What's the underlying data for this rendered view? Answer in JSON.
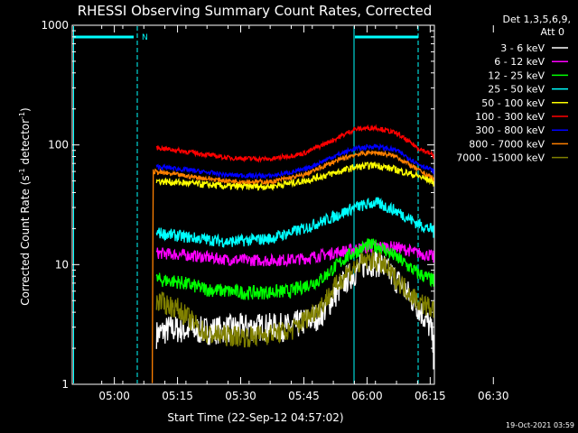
{
  "chart_data": {
    "type": "line",
    "title": "RHESSI Observing Summary Count Rates, Corrected",
    "xlabel": "Start Time (22-Sep-12 04:57:02)",
    "ylabel": "Corrected Count Rate (s⁻¹ detector⁻¹)",
    "y_scale": "log",
    "ylim": [
      1,
      1000
    ],
    "y_ticks": [
      "1",
      "10",
      "100",
      "1000"
    ],
    "x_range_min": [
      -7,
      79
    ],
    "x_ticks": [
      {
        "label": "05:00",
        "min": 3
      },
      {
        "label": "05:15",
        "min": 18
      },
      {
        "label": "05:30",
        "min": 33
      },
      {
        "label": "05:45",
        "min": 48
      },
      {
        "label": "06:00",
        "min": 63
      },
      {
        "label": "06:15",
        "min": 78
      },
      {
        "label": "06:30",
        "min": 93
      }
    ],
    "legend_header": [
      "Det 1,3,5,6,9,",
      "Att 0"
    ],
    "legend_position": "right",
    "timestamp": "19-Oct-2021 03:59",
    "night_marker": "N",
    "series": [
      {
        "name": "3 - 6 keV",
        "color": "#ffffff",
        "points": [
          [
            13,
            2.6
          ],
          [
            16,
            2.9
          ],
          [
            25,
            2.8
          ],
          [
            35,
            3.0
          ],
          [
            45,
            3.0
          ],
          [
            52,
            3.8
          ],
          [
            58,
            7.5
          ],
          [
            63,
            10.5
          ],
          [
            66,
            10.2
          ],
          [
            70,
            7.5
          ],
          [
            75,
            4.5
          ],
          [
            78,
            3.0
          ],
          [
            80,
            1.5
          ]
        ]
      },
      {
        "name": "6 - 12 keV",
        "color": "#ff00ff",
        "points": [
          [
            13,
            12.5
          ],
          [
            20,
            12.0
          ],
          [
            30,
            11.0
          ],
          [
            40,
            10.8
          ],
          [
            48,
            11.2
          ],
          [
            55,
            12.5
          ],
          [
            60,
            13.5
          ],
          [
            65,
            14.2
          ],
          [
            70,
            14.0
          ],
          [
            75,
            12.5
          ],
          [
            80,
            11.5
          ]
        ]
      },
      {
        "name": "12 - 25 keV",
        "color": "#00ff00",
        "points": [
          [
            13,
            7.5
          ],
          [
            18,
            7.2
          ],
          [
            25,
            6.2
          ],
          [
            35,
            5.8
          ],
          [
            45,
            6.0
          ],
          [
            52,
            7.5
          ],
          [
            58,
            11.5
          ],
          [
            63,
            14.5
          ],
          [
            66,
            14.2
          ],
          [
            70,
            11.5
          ],
          [
            75,
            8.5
          ],
          [
            80,
            7.0
          ]
        ]
      },
      {
        "name": "25 - 50 keV",
        "color": "#00ffff",
        "points": [
          [
            13,
            18.5
          ],
          [
            20,
            17.0
          ],
          [
            30,
            15.5
          ],
          [
            40,
            16.5
          ],
          [
            48,
            20.0
          ],
          [
            55,
            25.0
          ],
          [
            60,
            30.0
          ],
          [
            65,
            33.0
          ],
          [
            70,
            28.0
          ],
          [
            75,
            22.0
          ],
          [
            80,
            18.5
          ]
        ]
      },
      {
        "name": "50 - 100 keV",
        "color": "#ffff00",
        "points": [
          [
            13,
            50
          ],
          [
            20,
            48
          ],
          [
            30,
            45
          ],
          [
            40,
            45
          ],
          [
            48,
            50
          ],
          [
            55,
            58
          ],
          [
            60,
            65
          ],
          [
            65,
            68
          ],
          [
            70,
            62
          ],
          [
            75,
            55
          ],
          [
            80,
            48
          ]
        ]
      },
      {
        "name": "100 - 300 keV",
        "color": "#ff0000",
        "points": [
          [
            13,
            95
          ],
          [
            20,
            88
          ],
          [
            30,
            78
          ],
          [
            40,
            76
          ],
          [
            48,
            85
          ],
          [
            55,
            110
          ],
          [
            60,
            135
          ],
          [
            65,
            140
          ],
          [
            70,
            125
          ],
          [
            75,
            95
          ],
          [
            80,
            78
          ]
        ]
      },
      {
        "name": "300 - 800 keV",
        "color": "#0000ff",
        "points": [
          [
            13,
            66
          ],
          [
            20,
            62
          ],
          [
            30,
            56
          ],
          [
            40,
            55
          ],
          [
            48,
            62
          ],
          [
            55,
            80
          ],
          [
            60,
            93
          ],
          [
            65,
            98
          ],
          [
            70,
            90
          ],
          [
            75,
            70
          ],
          [
            80,
            58
          ]
        ]
      },
      {
        "name": "800 - 7000 keV",
        "color": "#ff8000",
        "points": [
          [
            12,
            1
          ],
          [
            12.2,
            60
          ],
          [
            20,
            55
          ],
          [
            30,
            50
          ],
          [
            40,
            49
          ],
          [
            48,
            56
          ],
          [
            55,
            72
          ],
          [
            60,
            83
          ],
          [
            65,
            87
          ],
          [
            70,
            80
          ],
          [
            75,
            62
          ],
          [
            80,
            50
          ]
        ]
      },
      {
        "name": "7000 - 15000 keV",
        "color": "#808000",
        "points": [
          [
            13,
            5.0
          ],
          [
            18,
            4.3
          ],
          [
            25,
            2.6
          ],
          [
            35,
            2.5
          ],
          [
            45,
            2.8
          ],
          [
            52,
            4.5
          ],
          [
            58,
            8.5
          ],
          [
            63,
            11.0
          ],
          [
            66,
            10.5
          ],
          [
            70,
            7.5
          ],
          [
            75,
            5.0
          ],
          [
            80,
            4.0
          ]
        ]
      }
    ]
  }
}
